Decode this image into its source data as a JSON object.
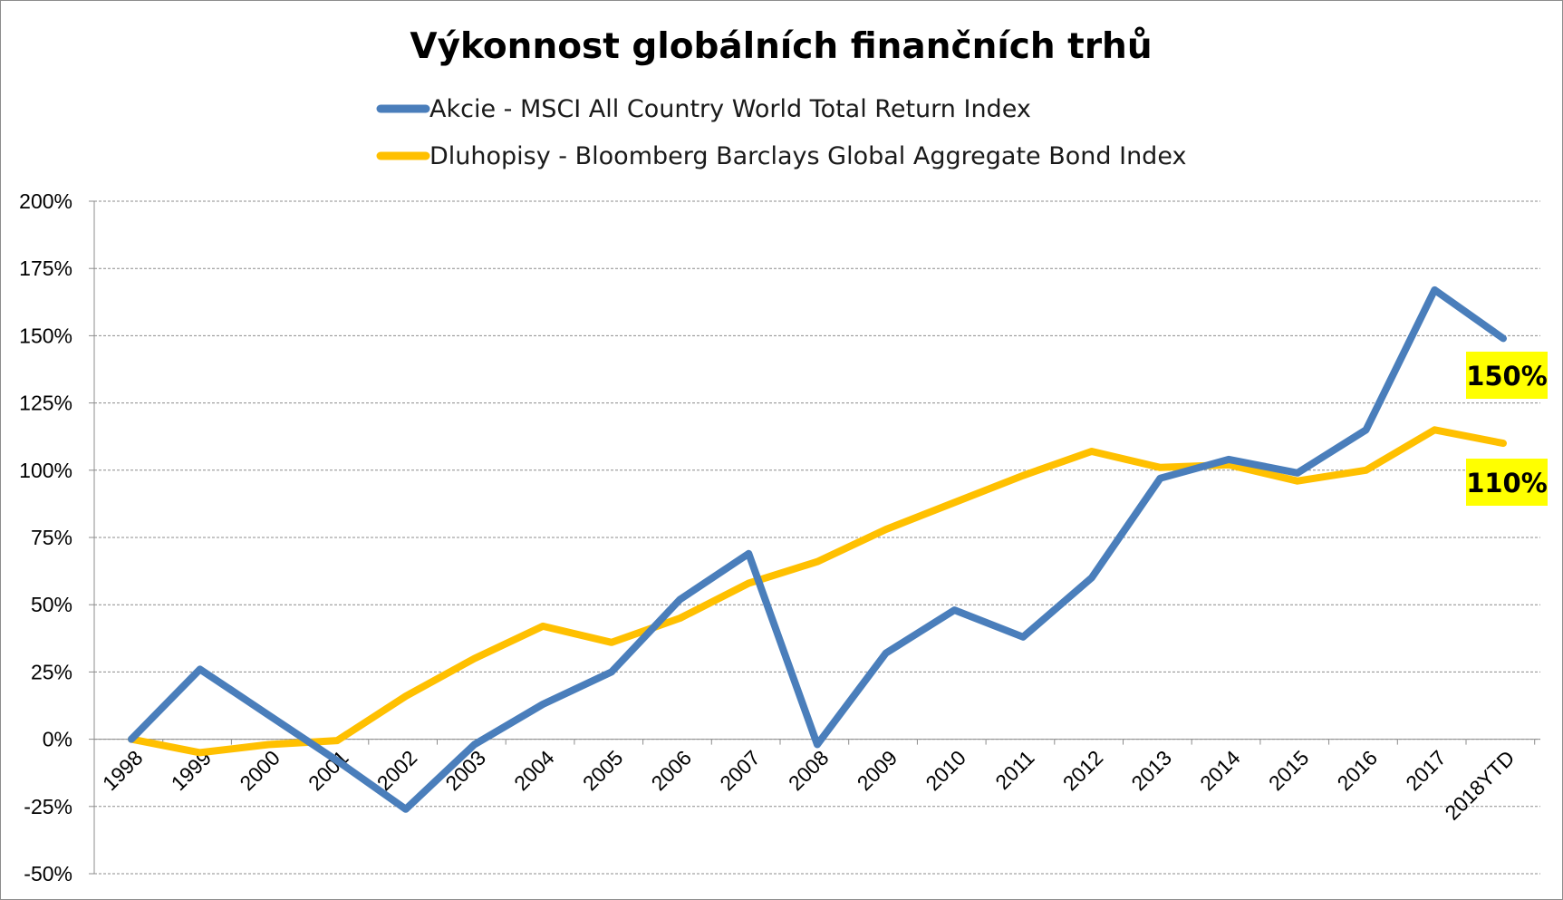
{
  "chart_data": {
    "type": "line",
    "title": "Výkonnost globálních finančních trhů",
    "xlabel": "",
    "ylabel": "",
    "categories": [
      "1998",
      "1999",
      "2000",
      "2001",
      "2002",
      "2003",
      "2004",
      "2005",
      "2006",
      "2007",
      "2008",
      "2009",
      "2010",
      "2011",
      "2012",
      "2013",
      "2014",
      "2015",
      "2016",
      "2017",
      "2018YTD"
    ],
    "ylim": [
      -50,
      200
    ],
    "yticks": [
      -50,
      -25,
      0,
      25,
      50,
      75,
      100,
      125,
      150,
      175,
      200
    ],
    "ytick_labels": [
      "-50%",
      "-25%",
      "0%",
      "25%",
      "50%",
      "75%",
      "100%",
      "125%",
      "150%",
      "175%",
      "200%"
    ],
    "grid": "horizontal-dashed",
    "legend_position": "top",
    "series": [
      {
        "name": "Akcie - MSCI All Country World Total Return Index",
        "color": "#4a7ebb",
        "values": [
          0,
          26,
          9,
          -8,
          -26,
          -2,
          13,
          25,
          52,
          69,
          -2,
          32,
          48,
          38,
          60,
          97,
          104,
          99,
          115,
          167,
          149
        ]
      },
      {
        "name": "Dluhopisy - Bloomberg Barclays Global Aggregate Bond Index",
        "color": "#ffc000",
        "values": [
          0,
          -5,
          -2,
          -0.5,
          16,
          30,
          42,
          36,
          45,
          58,
          66,
          78,
          88,
          98,
          107,
          101,
          102,
          96,
          100,
          115,
          110
        ]
      }
    ],
    "annotations": [
      {
        "text": "150%",
        "series": 0,
        "background": "#ffff00"
      },
      {
        "text": "110%",
        "series": 1,
        "background": "#ffff00"
      }
    ]
  }
}
